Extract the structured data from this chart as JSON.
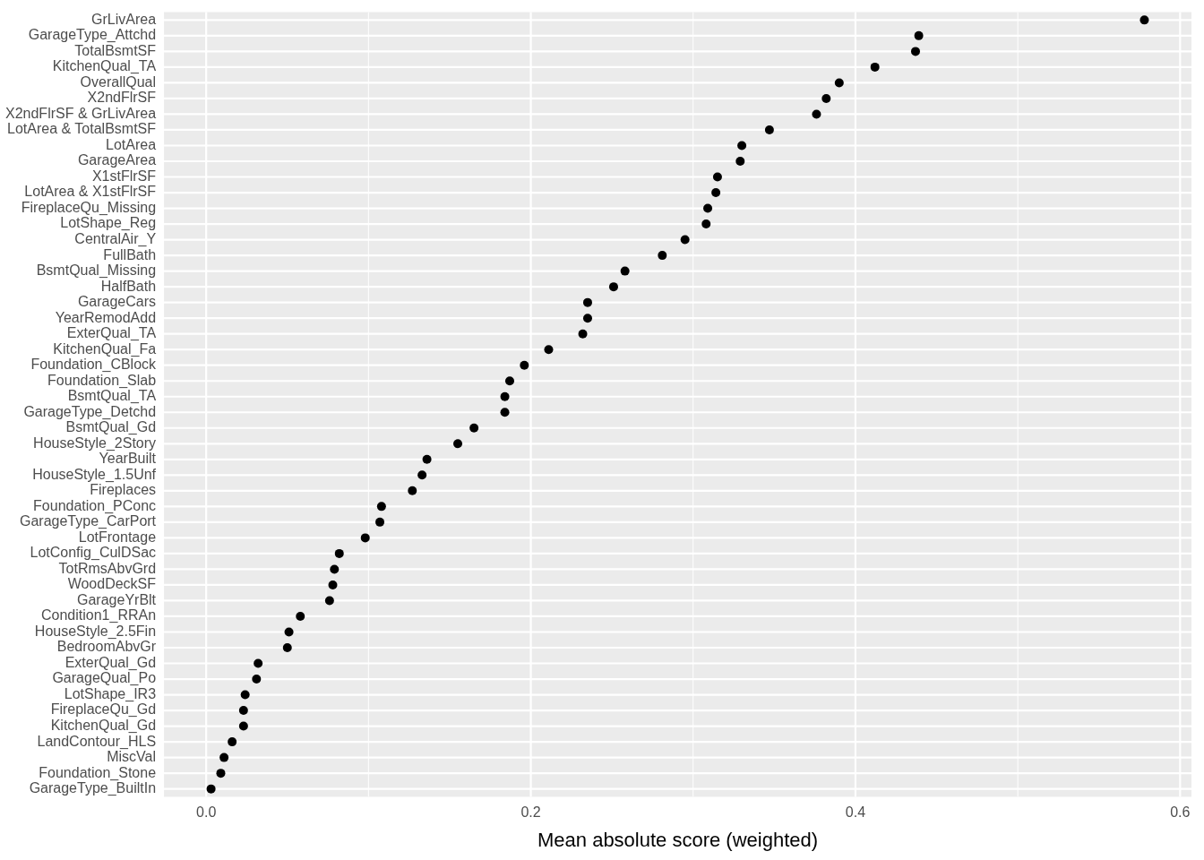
{
  "chart_data": {
    "type": "scatter",
    "orientation": "horizontal",
    "xlabel": "Mean absolute score (weighted)",
    "categories": [
      "GrLivArea",
      "GarageType_Attchd",
      "TotalBsmtSF",
      "KitchenQual_TA",
      "OverallQual",
      "X2ndFlrSF",
      "X2ndFlrSF & GrLivArea",
      "LotArea & TotalBsmtSF",
      "LotArea",
      "GarageArea",
      "X1stFlrSF",
      "LotArea & X1stFlrSF",
      "FireplaceQu_Missing",
      "LotShape_Reg",
      "CentralAir_Y",
      "FullBath",
      "BsmtQual_Missing",
      "HalfBath",
      "GarageCars",
      "YearRemodAdd",
      "ExterQual_TA",
      "KitchenQual_Fa",
      "Foundation_CBlock",
      "Foundation_Slab",
      "BsmtQual_TA",
      "GarageType_Detchd",
      "BsmtQual_Gd",
      "HouseStyle_2Story",
      "YearBuilt",
      "HouseStyle_1.5Unf",
      "Fireplaces",
      "Foundation_PConc",
      "GarageType_CarPort",
      "LotFrontage",
      "LotConfig_CulDSac",
      "TotRmsAbvGrd",
      "WoodDeckSF",
      "GarageYrBlt",
      "Condition1_RRAn",
      "HouseStyle_2.5Fin",
      "BedroomAbvGr",
      "ExterQual_Gd",
      "GarageQual_Po",
      "LotShape_IR3",
      "FireplaceQu_Gd",
      "KitchenQual_Gd",
      "LandContour_HLS",
      "MiscVal",
      "Foundation_Stone",
      "GarageType_BuiltIn"
    ],
    "values": [
      0.578,
      0.439,
      0.437,
      0.412,
      0.39,
      0.382,
      0.376,
      0.347,
      0.33,
      0.329,
      0.315,
      0.314,
      0.309,
      0.308,
      0.295,
      0.281,
      0.258,
      0.251,
      0.235,
      0.235,
      0.232,
      0.211,
      0.196,
      0.187,
      0.184,
      0.184,
      0.165,
      0.155,
      0.136,
      0.133,
      0.127,
      0.108,
      0.107,
      0.098,
      0.082,
      0.079,
      0.078,
      0.076,
      0.058,
      0.051,
      0.05,
      0.032,
      0.031,
      0.024,
      0.023,
      0.023,
      0.016,
      0.011,
      0.009,
      0.003
    ],
    "color": "#000000",
    "marker": "circle",
    "xlim": [
      -0.026,
      0.607
    ],
    "xticks": [
      {
        "value": 0,
        "label": "0.0"
      },
      0.2,
      0.4,
      0.6
    ],
    "grid": true,
    "legend": false
  }
}
